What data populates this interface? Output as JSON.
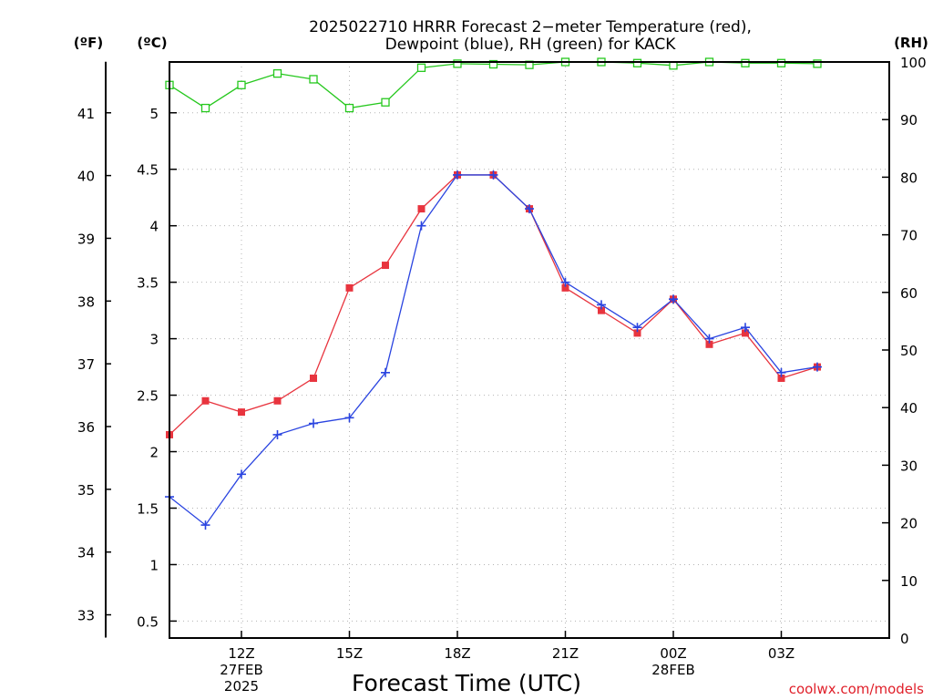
{
  "header": {
    "title_line1": "2025022710 HRRR Forecast 2−meter Temperature (red),",
    "title_line2": "Dewpoint (blue), RH (green) for KACK"
  },
  "credit": "coolwx.com/models",
  "chart_data": {
    "type": "line",
    "x": [
      "10Z",
      "11Z",
      "12Z",
      "13Z",
      "14Z",
      "15Z",
      "16Z",
      "17Z",
      "18Z",
      "19Z",
      "20Z",
      "21Z",
      "22Z",
      "23Z",
      "00Z",
      "01Z",
      "02Z",
      "03Z",
      "04Z"
    ],
    "xtick_labels": [
      {
        "hour": "12Z",
        "lines": [
          "12Z",
          "27FEB",
          "2025"
        ]
      },
      {
        "hour": "15Z",
        "lines": [
          "15Z"
        ]
      },
      {
        "hour": "18Z",
        "lines": [
          "18Z"
        ]
      },
      {
        "hour": "21Z",
        "lines": [
          "21Z"
        ]
      },
      {
        "hour": "00Z",
        "lines": [
          "00Z",
          "28FEB"
        ]
      },
      {
        "hour": "03Z",
        "lines": [
          "03Z"
        ]
      }
    ],
    "xlabel": "Forecast Time (UTC)",
    "series": [
      {
        "name": "2-meter Temperature (red)",
        "axis": "celsius",
        "color": "#e8343e",
        "marker": "filled-square",
        "values": [
          2.15,
          2.45,
          2.35,
          2.45,
          2.65,
          3.45,
          3.65,
          4.15,
          4.45,
          4.45,
          4.15,
          3.45,
          3.25,
          3.05,
          3.35,
          2.95,
          3.05,
          2.65,
          2.75
        ]
      },
      {
        "name": "Dewpoint (blue)",
        "axis": "celsius",
        "color": "#2a44e0",
        "marker": "plus",
        "values": [
          1.6,
          1.35,
          1.8,
          2.15,
          2.25,
          2.3,
          2.7,
          4.0,
          4.45,
          4.45,
          4.15,
          3.5,
          3.3,
          3.1,
          3.35,
          3.0,
          3.1,
          2.7,
          2.75
        ]
      },
      {
        "name": "RH (green)",
        "axis": "rh",
        "color": "#26c81e",
        "marker": "open-square",
        "values": [
          96,
          92,
          96,
          98,
          97,
          92,
          93,
          99,
          99.7,
          99.6,
          99.5,
          100,
          100,
          99.8,
          99.4,
          100,
          99.8,
          99.8,
          99.7
        ]
      }
    ],
    "axes": {
      "fahrenheit": {
        "label": "(ºF)",
        "ticks": [
          33,
          34,
          35,
          36,
          37,
          38,
          39,
          40,
          41
        ]
      },
      "celsius": {
        "label": "(ºC)",
        "ticks": [
          0.5,
          1,
          1.5,
          2,
          2.5,
          3,
          3.5,
          4,
          4.5,
          5
        ],
        "ylim": [
          0.35,
          5.45
        ]
      },
      "rh": {
        "label": "(RH)",
        "ticks": [
          0,
          10,
          20,
          30,
          40,
          50,
          60,
          70,
          80,
          90,
          100
        ],
        "ylim": [
          0,
          100
        ]
      }
    },
    "grid": true
  }
}
